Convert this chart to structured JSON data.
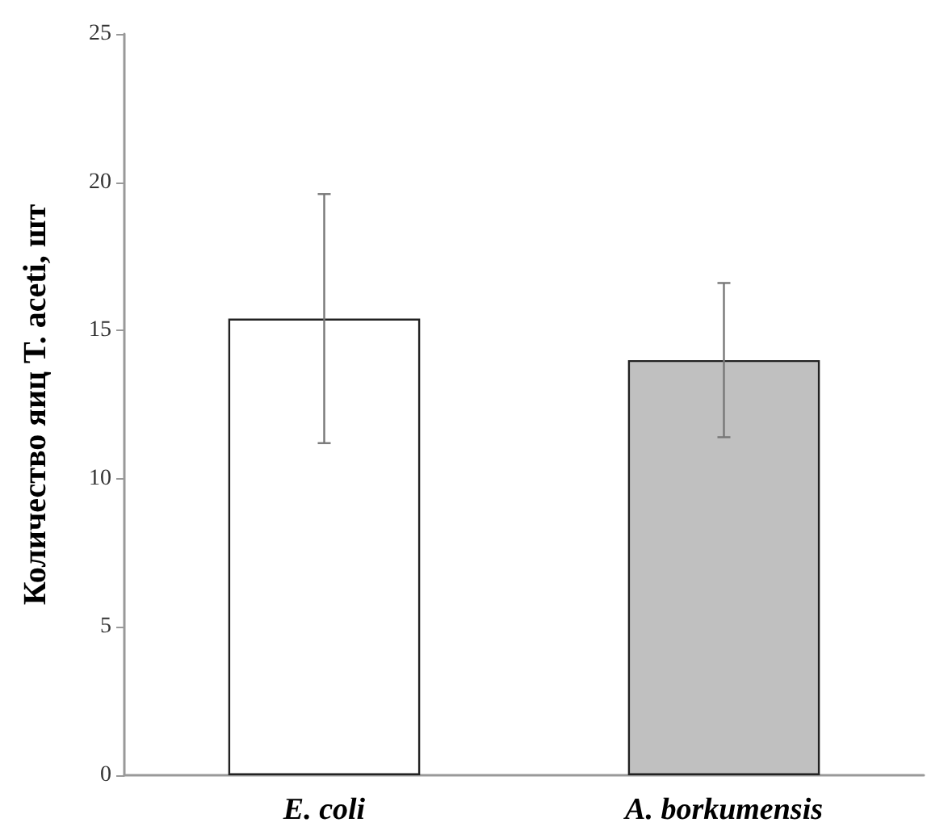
{
  "chart_data": {
    "type": "bar",
    "ylabel": "Количество яиц T. aceti, шт",
    "categories": [
      "E. coli",
      "A. borkumensis"
    ],
    "values": [
      15.4,
      14.0
    ],
    "errors": [
      4.2,
      2.6
    ],
    "colors": [
      "#ffffff",
      "#c0c0c0"
    ],
    "ylim": [
      0,
      25
    ],
    "yticks": [
      0,
      5,
      10,
      15,
      20,
      25
    ]
  }
}
